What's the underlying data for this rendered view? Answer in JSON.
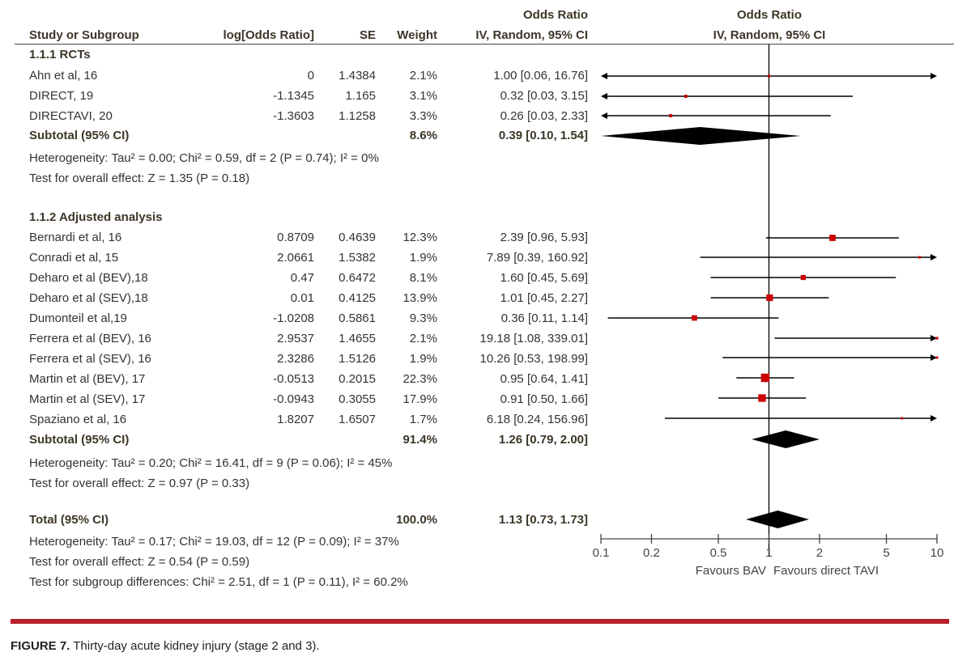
{
  "header": {
    "study_col": "Study or Subgroup",
    "logor_col": "log[Odds Ratio]",
    "se_col": "SE",
    "weight_col": "Weight",
    "or_col_top": "Odds Ratio",
    "or_col_bottom": "IV, Random, 95% CI",
    "plot_col_top": "Odds Ratio",
    "plot_col_bottom": "IV, Random, 95% CI"
  },
  "groups": [
    {
      "title": "1.1.1 RCTs",
      "studies": [
        {
          "name": "Ahn et al, 16",
          "logor": "0",
          "se": "1.4384",
          "weight": "2.1%",
          "or_text": "1.00 [0.06, 16.76]"
        },
        {
          "name": "DIRECT, 19",
          "logor": "-1.1345",
          "se": "1.165",
          "weight": "3.1%",
          "or_text": "0.32 [0.03, 3.15]"
        },
        {
          "name": "DIRECTAVI, 20",
          "logor": "-1.3603",
          "se": "1.1258",
          "weight": "3.3%",
          "or_text": "0.26 [0.03, 2.33]"
        }
      ],
      "subtotal": {
        "label": "Subtotal (95% CI)",
        "weight": "8.6%",
        "or_text": "0.39 [0.10, 1.54]"
      },
      "heterogeneity": "Heterogeneity: Tau² = 0.00; Chi² = 0.59, df = 2 (P = 0.74); I² = 0%",
      "overall": "Test for overall effect: Z = 1.35 (P = 0.18)"
    },
    {
      "title": "1.1.2 Adjusted analysis",
      "studies": [
        {
          "name": "Bernardi et al, 16",
          "logor": "0.8709",
          "se": "0.4639",
          "weight": "12.3%",
          "or_text": "2.39 [0.96, 5.93]"
        },
        {
          "name": "Conradi et al, 15",
          "logor": "2.0661",
          "se": "1.5382",
          "weight": "1.9%",
          "or_text": "7.89 [0.39, 160.92]"
        },
        {
          "name": "Deharo et al (BEV),18",
          "logor": "0.47",
          "se": "0.6472",
          "weight": "8.1%",
          "or_text": "1.60 [0.45, 5.69]"
        },
        {
          "name": "Deharo et al (SEV),18",
          "logor": "0.01",
          "se": "0.4125",
          "weight": "13.9%",
          "or_text": "1.01 [0.45, 2.27]"
        },
        {
          "name": "Dumonteil et al,19",
          "logor": "-1.0208",
          "se": "0.5861",
          "weight": "9.3%",
          "or_text": "0.36 [0.11, 1.14]"
        },
        {
          "name": "Ferrera et al (BEV), 16",
          "logor": "2.9537",
          "se": "1.4655",
          "weight": "2.1%",
          "or_text": "19.18 [1.08, 339.01]"
        },
        {
          "name": "Ferrera et al (SEV), 16",
          "logor": "2.3286",
          "se": "1.5126",
          "weight": "1.9%",
          "or_text": "10.26 [0.53, 198.99]"
        },
        {
          "name": "Martin et al (BEV), 17",
          "logor": "-0.0513",
          "se": "0.2015",
          "weight": "22.3%",
          "or_text": "0.95 [0.64, 1.41]"
        },
        {
          "name": "Martin et al (SEV), 17",
          "logor": "-0.0943",
          "se": "0.3055",
          "weight": "17.9%",
          "or_text": "0.91 [0.50, 1.66]"
        },
        {
          "name": "Spaziano et al, 16",
          "logor": "1.8207",
          "se": "1.6507",
          "weight": "1.7%",
          "or_text": "6.18 [0.24, 156.96]"
        }
      ],
      "subtotal": {
        "label": "Subtotal (95% CI)",
        "weight": "91.4%",
        "or_text": "1.26 [0.79, 2.00]"
      },
      "heterogeneity": "Heterogeneity: Tau² = 0.20; Chi² = 16.41, df = 9 (P = 0.06); I² = 45%",
      "overall": "Test for overall effect: Z = 0.97 (P = 0.33)"
    }
  ],
  "total": {
    "label": "Total (95% CI)",
    "weight": "100.0%",
    "or_text": "1.13 [0.73, 1.73]",
    "heterogeneity": "Heterogeneity: Tau² = 0.17; Chi² = 19.03, df = 12 (P = 0.09); I² = 37%",
    "overall": "Test for overall effect: Z = 0.54 (P = 0.59)",
    "subgroup": "Test for subgroup differences: Chi² = 2.51, df = 1 (P = 0.11), I² = 60.2%"
  },
  "caption": {
    "label": "FIGURE 7.",
    "text": " Thirty-day acute kidney injury (stage 2 and 3)."
  },
  "colors": {
    "point": "#cc0000",
    "line": "#000000",
    "accent_bar": "#b8202e"
  },
  "chart_data": {
    "type": "forest",
    "scale": "log",
    "xlim": [
      0.1,
      10
    ],
    "ticks": [
      "0.1",
      "0.2",
      "0.5",
      "1",
      "2",
      "5",
      "10"
    ],
    "tick_values": [
      0.1,
      0.2,
      0.5,
      1,
      2,
      5,
      10
    ],
    "xlabel_left": "Favours BAV",
    "xlabel_right": "Favours direct TAVI",
    "null_value": 1,
    "studies": [
      {
        "group": 0,
        "or": 1.0,
        "lo": 0.06,
        "hi": 16.76,
        "weight": 2.1
      },
      {
        "group": 0,
        "or": 0.32,
        "lo": 0.03,
        "hi": 3.15,
        "weight": 3.1
      },
      {
        "group": 0,
        "or": 0.26,
        "lo": 0.03,
        "hi": 2.33,
        "weight": 3.3
      },
      {
        "group": 1,
        "or": 2.39,
        "lo": 0.96,
        "hi": 5.93,
        "weight": 12.3
      },
      {
        "group": 1,
        "or": 7.89,
        "lo": 0.39,
        "hi": 160.92,
        "weight": 1.9
      },
      {
        "group": 1,
        "or": 1.6,
        "lo": 0.45,
        "hi": 5.69,
        "weight": 8.1
      },
      {
        "group": 1,
        "or": 1.01,
        "lo": 0.45,
        "hi": 2.27,
        "weight": 13.9
      },
      {
        "group": 1,
        "or": 0.36,
        "lo": 0.11,
        "hi": 1.14,
        "weight": 9.3
      },
      {
        "group": 1,
        "or": 19.18,
        "lo": 1.08,
        "hi": 339.01,
        "weight": 2.1
      },
      {
        "group": 1,
        "or": 10.26,
        "lo": 0.53,
        "hi": 198.99,
        "weight": 1.9
      },
      {
        "group": 1,
        "or": 0.95,
        "lo": 0.64,
        "hi": 1.41,
        "weight": 22.3
      },
      {
        "group": 1,
        "or": 0.91,
        "lo": 0.5,
        "hi": 1.66,
        "weight": 17.9
      },
      {
        "group": 1,
        "or": 6.18,
        "lo": 0.24,
        "hi": 156.96,
        "weight": 1.7
      }
    ],
    "summaries": [
      {
        "name": "subtotal-rcts",
        "or": 0.39,
        "lo": 0.1,
        "hi": 1.54
      },
      {
        "name": "subtotal-adjusted",
        "or": 1.26,
        "lo": 0.79,
        "hi": 2.0
      },
      {
        "name": "total",
        "or": 1.13,
        "lo": 0.73,
        "hi": 1.73
      }
    ]
  }
}
